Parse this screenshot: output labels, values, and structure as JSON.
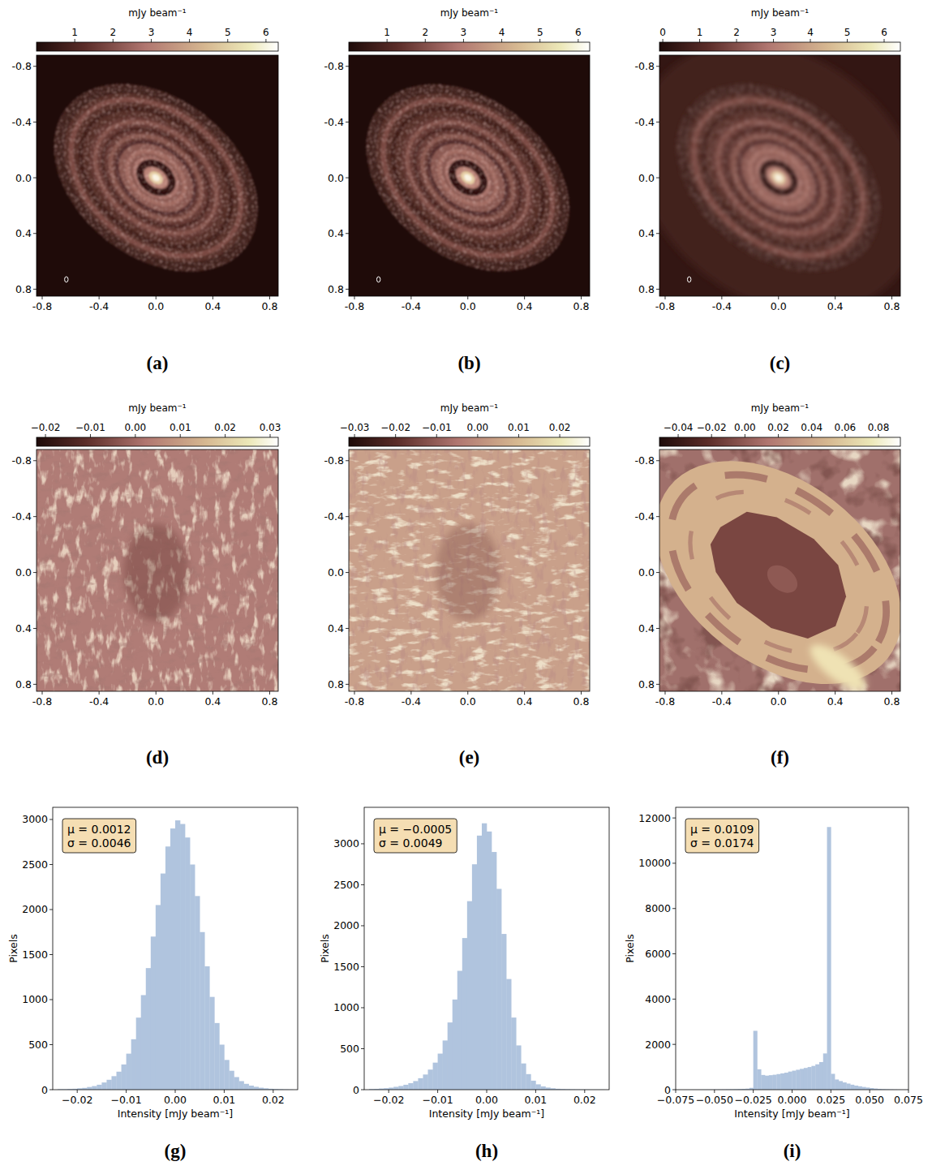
{
  "chart_data": [
    {
      "type": "image",
      "title": "(a)",
      "colorbar_label": "mJy  beam⁻¹",
      "colorbar_range": [
        0,
        6.32
      ],
      "colorbar_ticks": [
        1,
        2,
        3,
        4,
        5,
        6
      ],
      "xlim": [
        -0.84,
        0.86
      ],
      "ylim": [
        0.85,
        -0.88
      ],
      "xticks": [
        -0.8,
        -0.4,
        {
          "value": 0,
          "label": "0.0"
        },
        0.4,
        0.8
      ],
      "yticks": [
        -0.8,
        -0.4,
        {
          "value": 0,
          "label": "0.0"
        },
        0.4,
        0.8
      ]
    },
    {
      "type": "image",
      "title": "(b)",
      "colorbar_label": "mJy  beam⁻¹",
      "colorbar_range": [
        0,
        6.3
      ],
      "colorbar_ticks": [
        1,
        2,
        3,
        4,
        5,
        6
      ],
      "xlim": [
        -0.84,
        0.86
      ],
      "ylim": [
        0.85,
        -0.88
      ],
      "xticks": [
        -0.8,
        -0.4,
        {
          "value": 0,
          "label": "0.0"
        },
        0.4,
        0.8
      ],
      "yticks": [
        -0.8,
        -0.4,
        {
          "value": 0,
          "label": "0.0"
        },
        0.4,
        0.8
      ]
    },
    {
      "type": "image",
      "title": "(c)",
      "colorbar_label": "mJy  beam⁻¹",
      "colorbar_range": [
        -0.09,
        6.44
      ],
      "colorbar_ticks": [
        0,
        1,
        2,
        3,
        4,
        5,
        6
      ],
      "xlim": [
        -0.84,
        0.86
      ],
      "ylim": [
        0.85,
        -0.88
      ],
      "xticks": [
        -0.8,
        -0.4,
        {
          "value": 0,
          "label": "0.0"
        },
        0.4,
        0.8
      ],
      "yticks": [
        -0.8,
        -0.4,
        {
          "value": 0,
          "label": "0.0"
        },
        0.4,
        0.8
      ]
    },
    {
      "type": "image",
      "title": "(d)",
      "colorbar_label": "mJy  beam⁻¹",
      "colorbar_range": [
        -0.022,
        0.0318
      ],
      "colorbar_ticks": [
        {
          "value": -0.02,
          "label": "−0.02"
        },
        {
          "value": -0.01,
          "label": "−0.01"
        },
        {
          "value": 0,
          "label": "0.00"
        },
        0.01,
        0.02,
        0.03
      ],
      "xlim": [
        -0.84,
        0.86
      ],
      "ylim": [
        0.85,
        -0.88
      ],
      "xticks": [
        -0.8,
        -0.4,
        {
          "value": 0,
          "label": "0.0"
        },
        0.4,
        0.8
      ],
      "yticks": [
        -0.8,
        -0.4,
        {
          "value": 0,
          "label": "0.0"
        },
        0.4,
        0.8
      ]
    },
    {
      "type": "image",
      "title": "(e)",
      "colorbar_label": "mJy  beam⁻¹",
      "colorbar_range": [
        -0.0314,
        0.0273
      ],
      "colorbar_ticks": [
        {
          "value": -0.03,
          "label": "−0.03"
        },
        {
          "value": -0.02,
          "label": "−0.02"
        },
        {
          "value": -0.01,
          "label": "−0.01"
        },
        {
          "value": 0,
          "label": "0.00"
        },
        0.01,
        0.02
      ],
      "xlim": [
        -0.84,
        0.86
      ],
      "ylim": [
        0.85,
        -0.88
      ],
      "xticks": [
        -0.8,
        -0.4,
        {
          "value": 0,
          "label": "0.0"
        },
        0.4,
        0.8
      ],
      "yticks": [
        -0.8,
        -0.4,
        {
          "value": 0,
          "label": "0.0"
        },
        0.4,
        0.8
      ]
    },
    {
      "type": "image",
      "title": "(f)",
      "colorbar_label": "mJy  beam⁻¹",
      "colorbar_range": [
        -0.0512,
        0.0931
      ],
      "colorbar_ticks": [
        {
          "value": -0.04,
          "label": "−0.04"
        },
        {
          "value": -0.02,
          "label": "−0.02"
        },
        {
          "value": 0,
          "label": "0.00"
        },
        0.02,
        0.04,
        0.06,
        0.08
      ],
      "xlim": [
        -0.84,
        0.86
      ],
      "ylim": [
        0.85,
        -0.88
      ],
      "xticks": [
        -0.8,
        -0.4,
        {
          "value": 0,
          "label": "0.0"
        },
        0.4,
        0.8
      ],
      "yticks": [
        -0.8,
        -0.4,
        {
          "value": 0,
          "label": "0.0"
        },
        0.4,
        0.8
      ]
    },
    {
      "type": "histogram",
      "title": "(g)",
      "x_label": "Intensity [mJy beam⁻¹]",
      "y_label": "Pixels",
      "color": "#b0c4de",
      "annotations": [
        "μ = 0.0012",
        "σ = 0.0046"
      ],
      "bins": [
        -0.024,
        -0.023,
        -0.022,
        -0.021,
        -0.02,
        -0.019,
        -0.018,
        -0.017,
        -0.016,
        -0.015,
        -0.014,
        -0.013,
        -0.012,
        -0.011,
        -0.01,
        -0.009,
        -0.008,
        -0.007,
        -0.006,
        -0.005,
        -0.004,
        -0.003,
        -0.002,
        -0.001,
        0,
        0.001,
        0.002,
        0.003,
        0.004,
        0.005,
        0.006,
        0.007,
        0.008,
        0.009,
        0.01,
        0.011,
        0.012,
        0.013,
        0.014,
        0.015,
        0.016,
        0.017,
        0.018,
        0.019,
        0.02,
        0.021,
        0.022,
        0.023,
        0.024
      ],
      "values": [
        5,
        5,
        8,
        10,
        15,
        20,
        30,
        40,
        55,
        80,
        110,
        150,
        200,
        280,
        400,
        560,
        800,
        1050,
        1350,
        1700,
        2050,
        2400,
        2700,
        2900,
        2990,
        2950,
        2800,
        2500,
        2150,
        1750,
        1370,
        1030,
        740,
        500,
        330,
        210,
        140,
        95,
        65,
        45,
        32,
        22,
        15,
        10,
        7,
        5,
        3,
        2
      ],
      "xlim": [
        -0.025,
        0.025
      ],
      "ylim": [
        0,
        3135
      ],
      "xticks": [
        {
          "value": -0.02,
          "label": "−0.02"
        },
        {
          "value": -0.01,
          "label": "−0.01"
        },
        {
          "value": 0,
          "label": "0.00"
        },
        0.01,
        0.02
      ],
      "yticks": [
        0,
        500,
        1000,
        1500,
        2000,
        2500,
        3000
      ]
    },
    {
      "type": "histogram",
      "title": "(h)",
      "x_label": "Intensity [mJy beam⁻¹]",
      "y_label": "Pixels",
      "color": "#b0c4de",
      "annotations": [
        "μ = −0.0005",
        "σ = 0.0049"
      ],
      "bins": [
        -0.024,
        -0.023,
        -0.022,
        -0.021,
        -0.02,
        -0.019,
        -0.018,
        -0.017,
        -0.016,
        -0.015,
        -0.014,
        -0.013,
        -0.012,
        -0.011,
        -0.01,
        -0.009,
        -0.008,
        -0.007,
        -0.006,
        -0.005,
        -0.004,
        -0.003,
        -0.002,
        -0.001,
        0,
        0.001,
        0.002,
        0.003,
        0.004,
        0.005,
        0.006,
        0.007,
        0.008,
        0.009,
        0.01,
        0.011,
        0.012,
        0.013,
        0.014,
        0.015,
        0.016,
        0.017,
        0.018,
        0.019,
        0.02,
        0.021,
        0.022,
        0.023,
        0.024
      ],
      "values": [
        8,
        10,
        14,
        18,
        25,
        35,
        45,
        60,
        80,
        105,
        140,
        185,
        245,
        330,
        440,
        600,
        820,
        1100,
        1450,
        1850,
        2300,
        2750,
        3100,
        3250,
        3150,
        2900,
        2450,
        1900,
        1350,
        880,
        540,
        320,
        190,
        110,
        65,
        40,
        26,
        17,
        11,
        8,
        6,
        4,
        3,
        2,
        2,
        1,
        1,
        1
      ],
      "xlim": [
        -0.025,
        0.025
      ],
      "ylim": [
        0,
        3445
      ],
      "xticks": [
        {
          "value": -0.02,
          "label": "−0.02"
        },
        {
          "value": -0.01,
          "label": "−0.01"
        },
        {
          "value": 0,
          "label": "0.00"
        },
        0.01,
        0.02
      ],
      "yticks": [
        0,
        500,
        1000,
        1500,
        2000,
        2500,
        3000
      ]
    },
    {
      "type": "histogram",
      "title": "(i)",
      "x_label": "Intensity [mJy beam⁻¹]",
      "y_label": "Pixels",
      "color": "#b0c4de",
      "annotations": [
        "μ = 0.0109",
        "σ = 0.0174"
      ],
      "bins": [
        -0.075,
        -0.0725,
        -0.07,
        -0.0675,
        -0.065,
        -0.0625,
        -0.06,
        -0.0575,
        -0.055,
        -0.0525,
        -0.05,
        -0.0475,
        -0.045,
        -0.0425,
        -0.04,
        -0.0375,
        -0.035,
        -0.0325,
        -0.03,
        -0.0275,
        -0.025,
        -0.0225,
        -0.02,
        -0.0175,
        -0.015,
        -0.0125,
        -0.01,
        -0.0075,
        -0.005,
        -0.0025,
        0,
        0.0025,
        0.005,
        0.0075,
        0.01,
        0.0125,
        0.015,
        0.0175,
        0.02,
        0.0225,
        0.025,
        0.0275,
        0.03,
        0.0325,
        0.035,
        0.0375,
        0.04,
        0.0425,
        0.045,
        0.0475,
        0.05,
        0.0525,
        0.055,
        0.0575,
        0.06,
        0.0625,
        0.065,
        0.0675,
        0.07,
        0.0725,
        0.075
      ],
      "values": [
        0,
        0,
        1,
        1,
        2,
        2,
        3,
        4,
        5,
        6,
        8,
        10,
        12,
        15,
        18,
        22,
        28,
        35,
        45,
        80,
        2600,
        900,
        650,
        620,
        640,
        660,
        690,
        720,
        750,
        800,
        840,
        880,
        920,
        960,
        1000,
        1050,
        1120,
        1220,
        1600,
        11600,
        700,
        450,
        380,
        320,
        270,
        220,
        180,
        150,
        120,
        95,
        70,
        50,
        35,
        25,
        18,
        12,
        8,
        5,
        3,
        2
      ],
      "xlim": [
        -0.075,
        0.075
      ],
      "ylim": [
        0,
        12470
      ],
      "xticks": [
        {
          "value": -0.075,
          "label": "−0.075"
        },
        {
          "value": -0.05,
          "label": "−0.050"
        },
        {
          "value": -0.025,
          "label": "−0.025"
        },
        {
          "value": 0,
          "label": "0.000"
        },
        0.025,
        {
          "value": 0.05,
          "label": "0.050"
        },
        0.075
      ],
      "yticks": [
        0,
        2000,
        4000,
        6000,
        8000,
        10000,
        12000
      ]
    }
  ]
}
